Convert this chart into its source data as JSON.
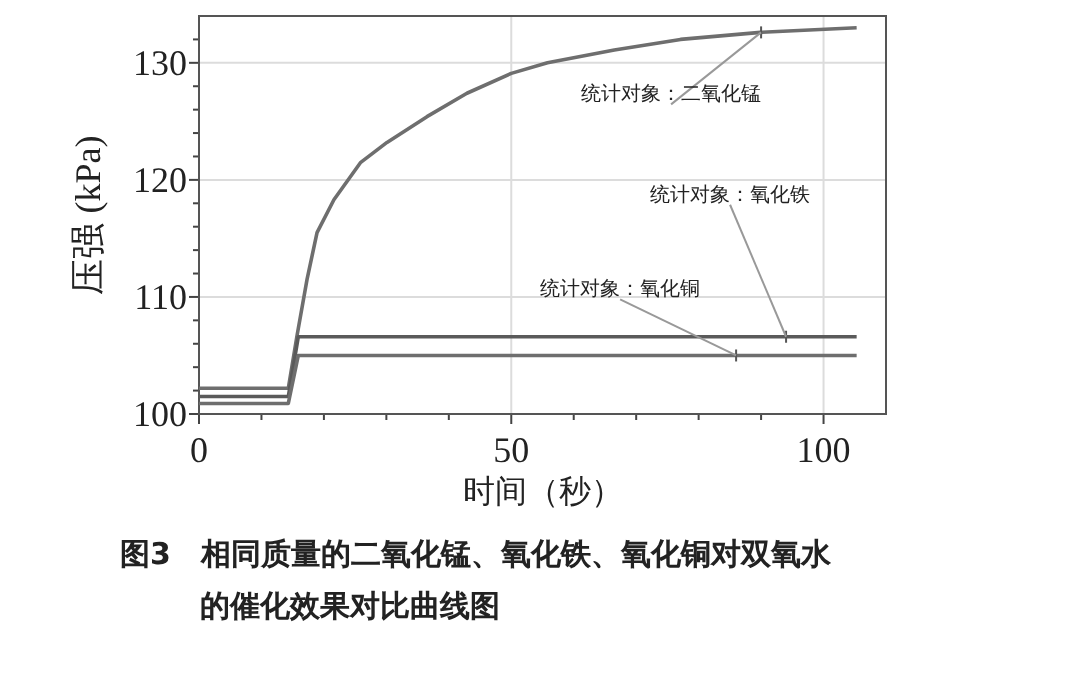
{
  "chart_data": {
    "type": "line",
    "xlabel": "时间（秒）",
    "ylabel": "压强 (kPa)",
    "xlim": [
      0,
      110
    ],
    "ylim": [
      100,
      134
    ],
    "xticks": [
      0,
      {
        "value": 10,
        "label": null
      },
      {
        "value": 20,
        "label": null
      },
      {
        "value": 30,
        "label": null
      },
      {
        "value": 40,
        "label": null
      },
      50,
      {
        "value": 60,
        "label": null
      },
      {
        "value": 70,
        "label": null
      },
      {
        "value": 80,
        "label": null
      },
      {
        "value": 90,
        "label": null
      },
      100
    ],
    "yticks": [
      100,
      {
        "value": 102,
        "label": null
      },
      {
        "value": 104,
        "label": null
      },
      {
        "value": 106,
        "label": null
      },
      {
        "value": 108,
        "label": null
      },
      110,
      {
        "value": 112,
        "label": null
      },
      {
        "value": 114,
        "label": null
      },
      {
        "value": 116,
        "label": null
      },
      {
        "value": 118,
        "label": null
      },
      120,
      {
        "value": 122,
        "label": null
      },
      {
        "value": 124,
        "label": null
      },
      {
        "value": 126,
        "label": null
      },
      {
        "value": 128,
        "label": null
      },
      130,
      {
        "value": 132,
        "label": null
      }
    ],
    "grid": true,
    "marker": "none",
    "line_style": "solid",
    "series": [
      {
        "color": "#6e6e6e",
        "x": [
          0,
          14.3,
          15.7,
          17.3,
          18.9,
          21.6,
          25.9,
          30.1,
          36.5,
          42.9,
          50,
          55.8,
          66.5,
          77.1,
          89.9,
          105.3
        ],
        "values": [
          102.2,
          102.2,
          106.7,
          111.5,
          115.5,
          118.3,
          121.5,
          123.2,
          125.4,
          127.4,
          129.1,
          130.0,
          131.1,
          132.0,
          132.6,
          133.0
        ]
      },
      {
        "color": "#5a5a5a",
        "x": [
          0,
          14.3,
          15.9,
          105.3
        ],
        "values": [
          101.5,
          101.5,
          106.6,
          106.6
        ]
      },
      {
        "color": "#6e6e6e",
        "x": [
          0,
          14.3,
          15.9,
          105.3
        ],
        "values": [
          100.9,
          100.9,
          105.0,
          105.0
        ]
      }
    ],
    "annotations": [
      {
        "text": "统计对象：二氧化锰",
        "x": 90,
        "y": 132.6
      },
      {
        "text": "统计对象：氧化铁",
        "x": 94,
        "y": 106.6
      },
      {
        "text": "统计对象：氧化铜",
        "x": 86,
        "y": 105.0
      },
      "图3　相同质量的二氧化锰、氧化铁、氧化铜对双氧水的催化效果对比曲线图"
    ]
  }
}
